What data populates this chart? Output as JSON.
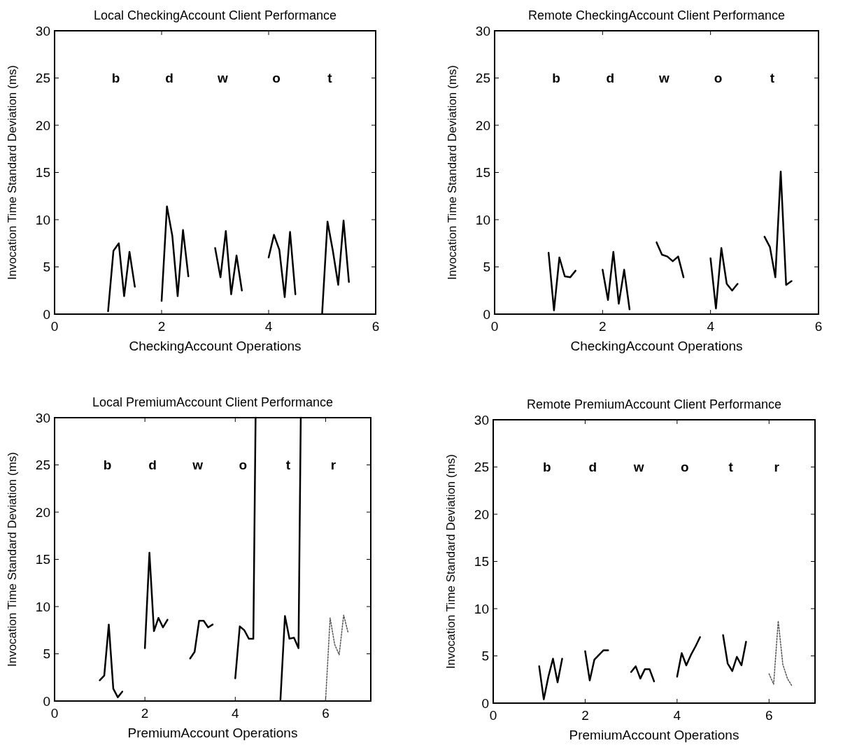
{
  "chart_data": [
    {
      "type": "line",
      "title": "Local CheckingAccount Client Performance",
      "xlabel": "CheckingAccount Operations",
      "ylabel": "Invocation Time Standard Deviation (ms)",
      "xlim": [
        0,
        6
      ],
      "ylim": [
        0,
        30
      ],
      "xticks": [
        0,
        2,
        4,
        6
      ],
      "yticks": [
        0,
        5,
        10,
        15,
        20,
        25,
        30
      ],
      "series": [
        {
          "color": "#000000",
          "x": [
            1,
            1.1,
            1.2,
            1.3,
            1.4,
            1.5
          ],
          "values": [
            0.3,
            6.7,
            7.5,
            1.9,
            6.6,
            2.9
          ]
        },
        {
          "color": "#000000",
          "x": [
            2,
            2.1,
            2.2,
            2.3,
            2.4,
            2.5
          ],
          "values": [
            1.4,
            11.4,
            8.3,
            1.9,
            8.9,
            4.0
          ]
        },
        {
          "color": "#000000",
          "x": [
            3,
            3.1,
            3.2,
            3.3,
            3.4,
            3.5
          ],
          "values": [
            7.0,
            3.9,
            8.8,
            2.1,
            6.2,
            2.5
          ]
        },
        {
          "color": "#000000",
          "x": [
            4,
            4.1,
            4.2,
            4.3,
            4.4,
            4.5
          ],
          "values": [
            6.0,
            8.4,
            6.8,
            1.8,
            8.7,
            2.1
          ]
        },
        {
          "color": "#000000",
          "x": [
            5,
            5.1,
            5.2,
            5.3,
            5.4,
            5.5
          ],
          "values": [
            0.1,
            9.8,
            6.7,
            3.1,
            9.9,
            3.4
          ]
        }
      ],
      "annotations": [
        "b",
        "d",
        "w",
        "o",
        "t"
      ]
    },
    {
      "type": "line",
      "title": "Remote CheckingAccount Client Performance",
      "xlabel": "CheckingAccount Operations",
      "ylabel": "Invocation Time Standard Deviation (ms)",
      "xlim": [
        0,
        6
      ],
      "ylim": [
        0,
        30
      ],
      "xticks": [
        0,
        2,
        4,
        6
      ],
      "yticks": [
        0,
        5,
        10,
        15,
        20,
        25,
        30
      ],
      "series": [
        {
          "color": "#000000",
          "x": [
            1,
            1.1,
            1.2,
            1.3,
            1.4,
            1.5
          ],
          "values": [
            6.5,
            0.4,
            6.0,
            4.0,
            3.9,
            4.6
          ]
        },
        {
          "color": "#000000",
          "x": [
            2,
            2.1,
            2.2,
            2.3,
            2.4,
            2.5
          ],
          "values": [
            4.7,
            1.5,
            6.6,
            1.1,
            4.7,
            0.5
          ]
        },
        {
          "color": "#000000",
          "x": [
            3,
            3.1,
            3.2,
            3.3,
            3.4,
            3.5
          ],
          "values": [
            7.6,
            6.3,
            6.1,
            5.6,
            6.1,
            3.9
          ]
        },
        {
          "color": "#000000",
          "x": [
            4,
            4.1,
            4.2,
            4.3,
            4.4,
            4.5
          ],
          "values": [
            5.9,
            0.6,
            7.0,
            3.2,
            2.5,
            3.2
          ]
        },
        {
          "color": "#000000",
          "x": [
            5,
            5.1,
            5.2,
            5.3,
            5.4,
            5.5
          ],
          "values": [
            8.2,
            7.1,
            3.9,
            15.1,
            3.1,
            3.5
          ]
        }
      ],
      "annotations": [
        "b",
        "d",
        "w",
        "o",
        "t"
      ]
    },
    {
      "type": "line",
      "title": "Local PremiumAccount Client Performance",
      "xlabel": "PremiumAccount Operations",
      "ylabel": "Invocation Time Standard Deviation (ms)",
      "xlim": [
        0,
        7
      ],
      "ylim": [
        0,
        30
      ],
      "xticks": [
        0,
        2,
        4,
        6
      ],
      "yticks": [
        0,
        5,
        10,
        15,
        20,
        25,
        30
      ],
      "series": [
        {
          "color": "#000000",
          "x": [
            1,
            1.1,
            1.2,
            1.3,
            1.4,
            1.5
          ],
          "values": [
            2.2,
            2.7,
            8.1,
            1.3,
            0.4,
            1.0
          ]
        },
        {
          "color": "#000000",
          "x": [
            2,
            2.1,
            2.2,
            2.3,
            2.4,
            2.5
          ],
          "values": [
            5.6,
            15.7,
            7.4,
            8.8,
            7.8,
            8.6
          ]
        },
        {
          "color": "#000000",
          "x": [
            3,
            3.1,
            3.2,
            3.3,
            3.4,
            3.5
          ],
          "values": [
            4.5,
            5.2,
            8.5,
            8.5,
            7.8,
            8.1
          ]
        },
        {
          "color": "#000000",
          "x": [
            4,
            4.1,
            4.2,
            4.3,
            4.4,
            4.45
          ],
          "values": [
            2.4,
            7.9,
            7.5,
            6.6,
            6.6,
            30
          ]
        },
        {
          "color": "#000000",
          "x": [
            5,
            5.1,
            5.2,
            5.3,
            5.4,
            5.45
          ],
          "values": [
            0.1,
            9.0,
            6.6,
            6.7,
            5.6,
            30
          ]
        },
        {
          "color": "#555555",
          "line_style": "dotted",
          "x": [
            6,
            6.1,
            6.2,
            6.3,
            6.4,
            6.5
          ],
          "values": [
            0.1,
            8.8,
            6.0,
            4.9,
            9.1,
            7.2
          ]
        }
      ],
      "annotations": [
        "b",
        "d",
        "w",
        "o",
        "t",
        "r"
      ]
    },
    {
      "type": "line",
      "title": "Remote PremiumAccount Client Performance",
      "xlabel": "PremiumAccount Operations",
      "ylabel": "Invocation Time Standard Deviation (ms)",
      "xlim": [
        0,
        7
      ],
      "ylim": [
        0,
        30
      ],
      "xticks": [
        0,
        2,
        4,
        6
      ],
      "yticks": [
        0,
        5,
        10,
        15,
        20,
        25,
        30
      ],
      "series": [
        {
          "color": "#000000",
          "x": [
            1,
            1.1,
            1.2,
            1.3,
            1.4,
            1.5
          ],
          "values": [
            3.9,
            0.4,
            2.8,
            4.7,
            2.2,
            4.7
          ]
        },
        {
          "color": "#000000",
          "x": [
            2,
            2.1,
            2.2,
            2.3,
            2.4,
            2.5
          ],
          "values": [
            5.5,
            2.4,
            4.6,
            5.1,
            5.6,
            5.6
          ]
        },
        {
          "color": "#000000",
          "x": [
            3,
            3.1,
            3.2,
            3.3,
            3.4,
            3.5
          ],
          "values": [
            3.3,
            3.9,
            2.6,
            3.6,
            3.6,
            2.3
          ]
        },
        {
          "color": "#000000",
          "x": [
            4,
            4.1,
            4.2,
            4.3,
            4.4,
            4.5
          ],
          "values": [
            2.8,
            5.3,
            4.0,
            5.1,
            6.0,
            7.0
          ]
        },
        {
          "color": "#000000",
          "x": [
            5,
            5.1,
            5.2,
            5.3,
            5.4,
            5.5
          ],
          "values": [
            7.2,
            4.2,
            3.4,
            4.9,
            4.0,
            6.5
          ]
        },
        {
          "color": "#555555",
          "line_style": "dotted",
          "x": [
            6,
            6.1,
            6.2,
            6.3,
            6.4,
            6.5
          ],
          "values": [
            3.1,
            2.0,
            8.7,
            4.1,
            2.6,
            1.8
          ]
        }
      ],
      "annotations": [
        "b",
        "d",
        "w",
        "o",
        "t",
        "r"
      ]
    }
  ]
}
